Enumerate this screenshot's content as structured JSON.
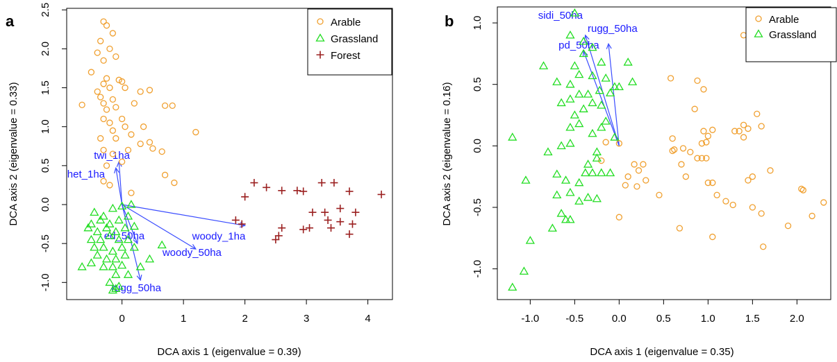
{
  "chart_data": [
    {
      "panel": "a",
      "type": "scatter",
      "xlabel": "DCA axis 1 (eigenvalue = 0.39)",
      "ylabel": "DCA axis 2 (eigenvalue = 0.33)",
      "xlim": [
        -0.9,
        4.4
      ],
      "ylim": [
        -1.22,
        2.52
      ],
      "xticks": [
        0,
        1,
        2,
        3,
        4
      ],
      "yticks": [
        -1.0,
        -0.5,
        0.0,
        0.5,
        1.0,
        1.5,
        2.0,
        2.5
      ],
      "ytick_labels": [
        "-1.0",
        "-0.5",
        "0.0",
        "0.5",
        "1.0",
        "1.5",
        "2.0",
        "2.5"
      ],
      "legend_position": "top-right",
      "legend": [
        "Arable",
        "Grassland",
        "Forest"
      ],
      "series": [
        {
          "name": "Arable",
          "marker": "circle",
          "color": "#f0a030",
          "points": [
            [
              -0.3,
              2.35
            ],
            [
              -0.25,
              2.3
            ],
            [
              -0.15,
              2.2
            ],
            [
              -0.35,
              2.1
            ],
            [
              -0.2,
              2.0
            ],
            [
              -0.4,
              1.95
            ],
            [
              -0.1,
              1.9
            ],
            [
              -0.3,
              1.85
            ],
            [
              -0.5,
              1.7
            ],
            [
              -0.25,
              1.62
            ],
            [
              -0.05,
              1.6
            ],
            [
              -0.3,
              1.55
            ],
            [
              -0.2,
              1.5
            ],
            [
              0.0,
              1.58
            ],
            [
              -0.4,
              1.45
            ],
            [
              0.05,
              1.5
            ],
            [
              0.3,
              1.45
            ],
            [
              0.45,
              1.47
            ],
            [
              -0.35,
              1.38
            ],
            [
              -0.15,
              1.35
            ],
            [
              -0.3,
              1.3
            ],
            [
              -0.25,
              1.22
            ],
            [
              -0.1,
              1.25
            ],
            [
              -0.65,
              1.28
            ],
            [
              0.2,
              1.3
            ],
            [
              0.7,
              1.27
            ],
            [
              0.82,
              1.27
            ],
            [
              -0.3,
              1.1
            ],
            [
              -0.2,
              1.05
            ],
            [
              0.0,
              1.1
            ],
            [
              -0.15,
              0.95
            ],
            [
              0.05,
              1.0
            ],
            [
              0.35,
              1.0
            ],
            [
              -0.35,
              0.85
            ],
            [
              -0.1,
              0.85
            ],
            [
              0.15,
              0.9
            ],
            [
              0.3,
              0.78
            ],
            [
              0.45,
              0.8
            ],
            [
              0.5,
              0.72
            ],
            [
              -0.3,
              0.7
            ],
            [
              -0.15,
              0.65
            ],
            [
              0.1,
              0.7
            ],
            [
              0.65,
              0.68
            ],
            [
              1.2,
              0.93
            ],
            [
              -0.25,
              0.5
            ],
            [
              0.0,
              0.55
            ],
            [
              0.7,
              0.38
            ],
            [
              -0.3,
              0.3
            ],
            [
              -0.2,
              0.25
            ],
            [
              0.85,
              0.28
            ],
            [
              0.15,
              0.15
            ]
          ]
        },
        {
          "name": "Grassland",
          "marker": "triangle",
          "color": "#22dd22",
          "points": [
            [
              -0.45,
              -0.1
            ],
            [
              -0.3,
              -0.15
            ],
            [
              -0.15,
              -0.05
            ],
            [
              0.0,
              -0.02
            ],
            [
              0.15,
              0.0
            ],
            [
              -0.5,
              -0.25
            ],
            [
              -0.35,
              -0.2
            ],
            [
              -0.2,
              -0.25
            ],
            [
              -0.05,
              -0.2
            ],
            [
              0.1,
              -0.15
            ],
            [
              -0.55,
              -0.3
            ],
            [
              -0.4,
              -0.35
            ],
            [
              -0.25,
              -0.3
            ],
            [
              -0.1,
              -0.35
            ],
            [
              0.05,
              -0.3
            ],
            [
              0.2,
              -0.28
            ],
            [
              -0.5,
              -0.45
            ],
            [
              -0.35,
              -0.45
            ],
            [
              -0.2,
              -0.4
            ],
            [
              -0.05,
              -0.45
            ],
            [
              0.1,
              -0.45
            ],
            [
              -0.45,
              -0.55
            ],
            [
              -0.3,
              -0.55
            ],
            [
              -0.15,
              -0.6
            ],
            [
              0.0,
              -0.55
            ],
            [
              0.2,
              -0.55
            ],
            [
              -0.4,
              -0.65
            ],
            [
              -0.25,
              -0.7
            ],
            [
              -0.1,
              -0.7
            ],
            [
              0.05,
              -0.65
            ],
            [
              -0.3,
              -0.8
            ],
            [
              -0.15,
              -0.8
            ],
            [
              0.0,
              -0.78
            ],
            [
              -0.5,
              -0.75
            ],
            [
              -0.65,
              -0.8
            ],
            [
              -0.1,
              -0.9
            ],
            [
              0.1,
              -0.9
            ],
            [
              -0.2,
              -1.0
            ],
            [
              -0.1,
              -1.08
            ],
            [
              -0.15,
              -1.1
            ],
            [
              -0.05,
              -1.05
            ],
            [
              0.65,
              -0.52
            ],
            [
              0.45,
              -0.7
            ],
            [
              0.3,
              -0.8
            ]
          ]
        },
        {
          "name": "Forest",
          "marker": "plus",
          "color": "#9b2020",
          "points": [
            [
              2.15,
              0.28
            ],
            [
              2.35,
              0.22
            ],
            [
              2.0,
              0.1
            ],
            [
              2.6,
              0.18
            ],
            [
              2.85,
              0.18
            ],
            [
              2.95,
              0.17
            ],
            [
              3.25,
              0.28
            ],
            [
              3.45,
              0.28
            ],
            [
              3.7,
              0.17
            ],
            [
              4.22,
              0.13
            ],
            [
              3.55,
              -0.05
            ],
            [
              3.8,
              -0.1
            ],
            [
              3.3,
              -0.1
            ],
            [
              3.1,
              -0.1
            ],
            [
              3.35,
              -0.2
            ],
            [
              3.55,
              -0.22
            ],
            [
              3.05,
              -0.3
            ],
            [
              2.95,
              -0.32
            ],
            [
              2.6,
              -0.3
            ],
            [
              3.4,
              -0.3
            ],
            [
              3.75,
              -0.25
            ],
            [
              2.55,
              -0.4
            ],
            [
              2.5,
              -0.45
            ],
            [
              3.7,
              -0.38
            ],
            [
              1.85,
              -0.2
            ],
            [
              1.95,
              -0.25
            ]
          ]
        }
      ],
      "vectors": [
        {
          "label": "twi_1ha",
          "end": [
            -0.05,
            0.55
          ]
        },
        {
          "label": "het_1ha",
          "end": [
            -0.1,
            0.47
          ]
        },
        {
          "label": "woody_1ha",
          "end": [
            2.0,
            -0.27
          ]
        },
        {
          "label": "woody_50ha",
          "end": [
            1.2,
            -0.57
          ]
        },
        {
          "label": "ed_50ha",
          "end": [
            0.25,
            -0.5
          ]
        },
        {
          "label": "rugg_50ha",
          "end": [
            0.3,
            -0.97
          ]
        }
      ]
    },
    {
      "panel": "b",
      "type": "scatter",
      "xlabel": "DCA axis 1 (eigenvalue = 0.35)",
      "ylabel": "DCA axis 2 (eigenvalue = 0.16)",
      "xlim": [
        -1.37,
        2.38
      ],
      "ylim": [
        -1.25,
        1.13
      ],
      "xticks": [
        -1.0,
        -0.5,
        0.0,
        0.5,
        1.0,
        1.5,
        2.0
      ],
      "xtick_labels": [
        "-1.0",
        "-0.5",
        "0.0",
        "0.5",
        "1.0",
        "1.5",
        "2.0"
      ],
      "yticks": [
        -1.0,
        -0.5,
        0.0,
        0.5,
        1.0
      ],
      "ytick_labels": [
        "-1.0",
        "-0.5",
        "0.0",
        "0.5",
        "1.0"
      ],
      "legend_position": "top-right",
      "legend": [
        "Arable",
        "Grassland"
      ],
      "series": [
        {
          "name": "Arable",
          "marker": "circle",
          "color": "#f0a030",
          "points": [
            [
              1.4,
              0.9
            ],
            [
              1.55,
              0.82
            ],
            [
              1.6,
              0.75
            ],
            [
              0.58,
              0.55
            ],
            [
              0.88,
              0.53
            ],
            [
              0.95,
              0.46
            ],
            [
              0.85,
              0.3
            ],
            [
              1.3,
              0.12
            ],
            [
              1.4,
              0.17
            ],
            [
              1.45,
              0.14
            ],
            [
              1.55,
              0.26
            ],
            [
              1.6,
              0.16
            ],
            [
              1.05,
              0.13
            ],
            [
              0.95,
              0.12
            ],
            [
              0.6,
              0.06
            ],
            [
              0.6,
              -0.04
            ],
            [
              0.62,
              -0.03
            ],
            [
              0.72,
              -0.02
            ],
            [
              0.93,
              0.02
            ],
            [
              0.98,
              0.03
            ],
            [
              1.0,
              0.08
            ],
            [
              1.35,
              0.12
            ],
            [
              1.4,
              0.07
            ],
            [
              0.8,
              -0.05
            ],
            [
              0.88,
              -0.1
            ],
            [
              0.93,
              -0.1
            ],
            [
              0.98,
              -0.1
            ],
            [
              0.17,
              -0.15
            ],
            [
              0.27,
              -0.15
            ],
            [
              0.22,
              -0.2
            ],
            [
              0.1,
              -0.25
            ],
            [
              0.3,
              -0.28
            ],
            [
              0.2,
              -0.33
            ],
            [
              0.07,
              -0.32
            ],
            [
              0.7,
              -0.15
            ],
            [
              0.75,
              -0.25
            ],
            [
              0.45,
              -0.4
            ],
            [
              1.0,
              -0.3
            ],
            [
              1.05,
              -0.3
            ],
            [
              1.1,
              -0.4
            ],
            [
              1.2,
              -0.45
            ],
            [
              1.28,
              -0.48
            ],
            [
              1.45,
              -0.28
            ],
            [
              1.5,
              -0.25
            ],
            [
              1.7,
              -0.2
            ],
            [
              1.5,
              -0.5
            ],
            [
              2.05,
              -0.35
            ],
            [
              2.07,
              -0.36
            ],
            [
              2.3,
              -0.46
            ],
            [
              2.17,
              -0.57
            ],
            [
              1.6,
              -0.55
            ],
            [
              1.9,
              -0.65
            ],
            [
              0.68,
              -0.67
            ],
            [
              1.05,
              -0.74
            ],
            [
              1.62,
              -0.82
            ],
            [
              0.0,
              -0.58
            ],
            [
              -0.2,
              -0.12
            ],
            [
              -0.15,
              0.03
            ],
            [
              0.0,
              0.02
            ]
          ]
        },
        {
          "name": "Grassland",
          "marker": "triangle",
          "color": "#22dd22",
          "points": [
            [
              -1.2,
              -1.15
            ],
            [
              -1.07,
              -1.02
            ],
            [
              -1.0,
              -0.77
            ],
            [
              -0.75,
              -0.67
            ],
            [
              -0.65,
              -0.55
            ],
            [
              -0.6,
              -0.6
            ],
            [
              -0.55,
              -0.6
            ],
            [
              -0.7,
              -0.4
            ],
            [
              -0.55,
              -0.38
            ],
            [
              -0.45,
              -0.45
            ],
            [
              -0.35,
              -0.42
            ],
            [
              -0.25,
              -0.43
            ],
            [
              -0.7,
              -0.23
            ],
            [
              -0.6,
              -0.28
            ],
            [
              -0.45,
              -0.3
            ],
            [
              -0.38,
              -0.22
            ],
            [
              -0.3,
              -0.22
            ],
            [
              -0.2,
              -0.22
            ],
            [
              -0.1,
              -0.22
            ],
            [
              -1.05,
              -0.28
            ],
            [
              -0.8,
              -0.05
            ],
            [
              -0.65,
              0.0
            ],
            [
              -0.55,
              0.02
            ],
            [
              -0.35,
              -0.15
            ],
            [
              -0.25,
              -0.05
            ],
            [
              -0.55,
              0.15
            ],
            [
              -0.45,
              0.18
            ],
            [
              -0.3,
              0.1
            ],
            [
              -0.25,
              -0.1
            ],
            [
              -0.2,
              0.15
            ],
            [
              -0.15,
              0.2
            ],
            [
              -0.05,
              0.07
            ],
            [
              -0.5,
              0.25
            ],
            [
              -0.4,
              0.3
            ],
            [
              -0.3,
              0.35
            ],
            [
              -0.2,
              0.33
            ],
            [
              -0.65,
              0.35
            ],
            [
              -0.55,
              0.38
            ],
            [
              -0.45,
              0.42
            ],
            [
              -0.35,
              0.42
            ],
            [
              -0.22,
              0.45
            ],
            [
              -0.1,
              0.43
            ],
            [
              -0.05,
              0.48
            ],
            [
              0.0,
              0.48
            ],
            [
              0.15,
              0.52
            ],
            [
              -0.7,
              0.52
            ],
            [
              -0.55,
              0.5
            ],
            [
              -0.45,
              0.58
            ],
            [
              -0.3,
              0.57
            ],
            [
              -0.15,
              0.55
            ],
            [
              -0.85,
              0.65
            ],
            [
              -0.5,
              0.65
            ],
            [
              -0.4,
              0.75
            ],
            [
              -0.3,
              0.8
            ],
            [
              -0.2,
              0.68
            ],
            [
              0.1,
              0.68
            ],
            [
              -0.55,
              0.9
            ],
            [
              -0.5,
              1.08
            ],
            [
              -1.2,
              0.07
            ],
            [
              -0.4,
              0.85
            ]
          ]
        }
      ],
      "vectors": [
        {
          "label": "sidi_50ha",
          "end": [
            -0.38,
            0.9
          ]
        },
        {
          "label": "rugg_50ha",
          "end": [
            -0.12,
            0.83
          ]
        },
        {
          "label": "pd_50ha",
          "end": [
            -0.4,
            0.77
          ]
        }
      ]
    }
  ]
}
